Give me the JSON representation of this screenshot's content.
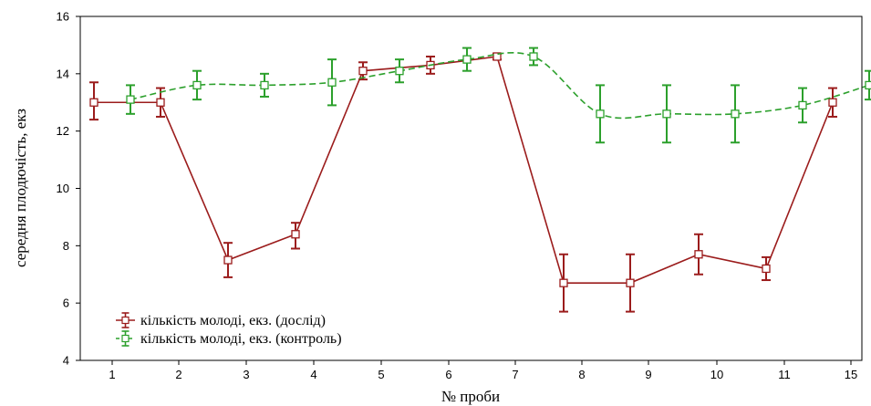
{
  "chart_data": {
    "type": "line",
    "xlabel": "№ проби",
    "ylabel": "середня плодючість, екз",
    "categories": [
      "1",
      "2",
      "3",
      "4",
      "5",
      "6",
      "7",
      "8",
      "9",
      "10",
      "11",
      "15"
    ],
    "ylim": [
      4,
      16
    ],
    "yticks": [
      4,
      6,
      8,
      10,
      12,
      14,
      16
    ],
    "legend_position": "bottom-left",
    "series": [
      {
        "name": "кількість молоді, екз. (дослід)",
        "color": "#9b1c1c",
        "line_style": "solid",
        "values": [
          13.0,
          13.0,
          7.5,
          8.4,
          14.1,
          14.3,
          14.6,
          6.7,
          6.7,
          7.7,
          7.2,
          13.0
        ],
        "error_low": [
          12.4,
          12.5,
          6.9,
          7.9,
          13.8,
          14.0,
          14.5,
          5.7,
          5.7,
          7.0,
          6.8,
          12.5
        ],
        "error_high": [
          13.7,
          13.5,
          8.1,
          8.8,
          14.4,
          14.6,
          14.7,
          7.7,
          7.7,
          8.4,
          7.6,
          13.5
        ]
      },
      {
        "name": "кількість молоді, екз. (контроль)",
        "color": "#2ca02c",
        "line_style": "dashed",
        "values": [
          13.1,
          13.6,
          13.6,
          13.7,
          14.1,
          14.5,
          14.6,
          12.6,
          12.6,
          12.6,
          12.9,
          13.6
        ],
        "error_low": [
          12.6,
          13.1,
          13.2,
          12.9,
          13.7,
          14.1,
          14.3,
          11.6,
          11.6,
          11.6,
          12.3,
          13.1
        ],
        "error_high": [
          13.6,
          14.1,
          14.0,
          14.5,
          14.5,
          14.9,
          14.9,
          13.6,
          13.6,
          13.6,
          13.5,
          14.1
        ]
      }
    ]
  }
}
